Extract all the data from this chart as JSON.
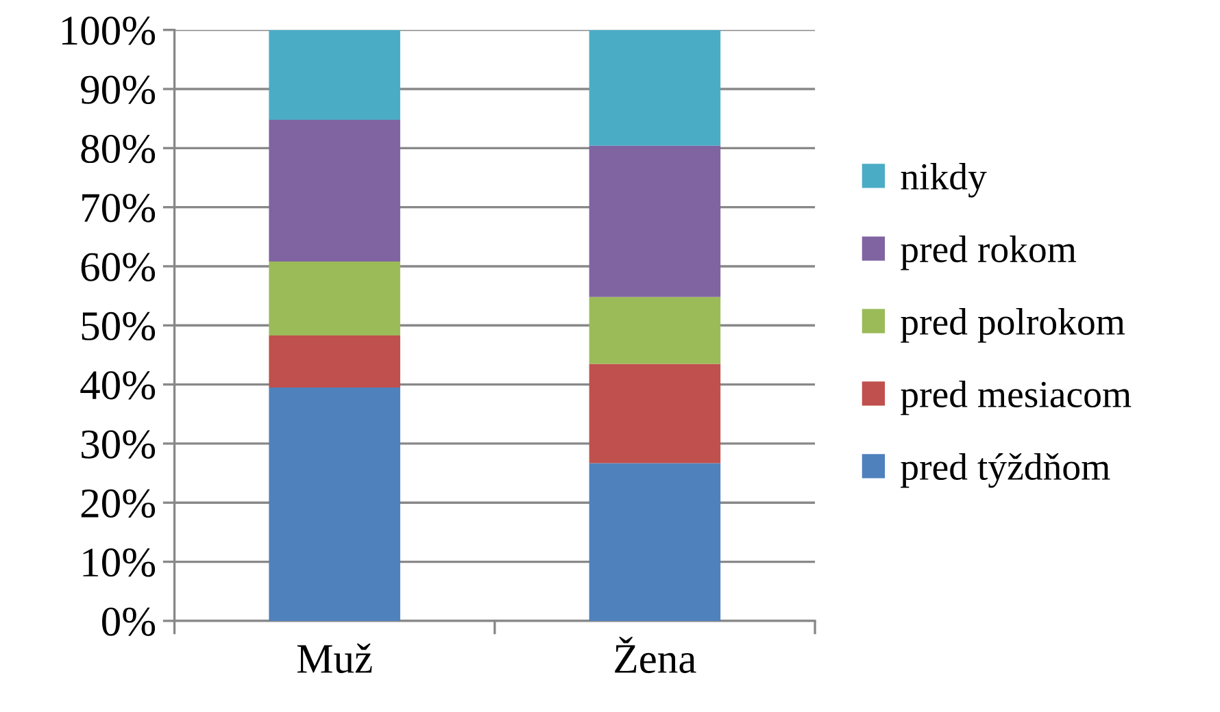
{
  "chart_data": {
    "type": "bar",
    "stacked": true,
    "categories": [
      "Muž",
      "Žena"
    ],
    "series": [
      {
        "name": "pred týždňom",
        "color": "#4f81bd",
        "values": [
          39.5,
          26.7
        ]
      },
      {
        "name": "pred mesiacom",
        "color": "#c0504d",
        "values": [
          8.8,
          16.8
        ]
      },
      {
        "name": "pred polrokom",
        "color": "#9bbb59",
        "values": [
          12.5,
          11.3
        ]
      },
      {
        "name": "pred rokom",
        "color": "#8064a2",
        "values": [
          24,
          25.6
        ]
      },
      {
        "name": "nikdy",
        "color": "#4bacc6",
        "values": [
          15.2,
          19.6
        ]
      }
    ],
    "ylim": [
      0,
      100
    ],
    "yticks": [
      {
        "value": 0,
        "label": "0%"
      },
      {
        "value": 10,
        "label": "10%"
      },
      {
        "value": 20,
        "label": "20%"
      },
      {
        "value": 30,
        "label": "30%"
      },
      {
        "value": 40,
        "label": "40%"
      },
      {
        "value": 50,
        "label": "50%"
      },
      {
        "value": 60,
        "label": "60%"
      },
      {
        "value": 70,
        "label": "70%"
      },
      {
        "value": 80,
        "label": "80%"
      },
      {
        "value": 90,
        "label": "90%"
      },
      {
        "value": 100,
        "label": "100%"
      }
    ],
    "grid": "y",
    "legend": "right"
  }
}
